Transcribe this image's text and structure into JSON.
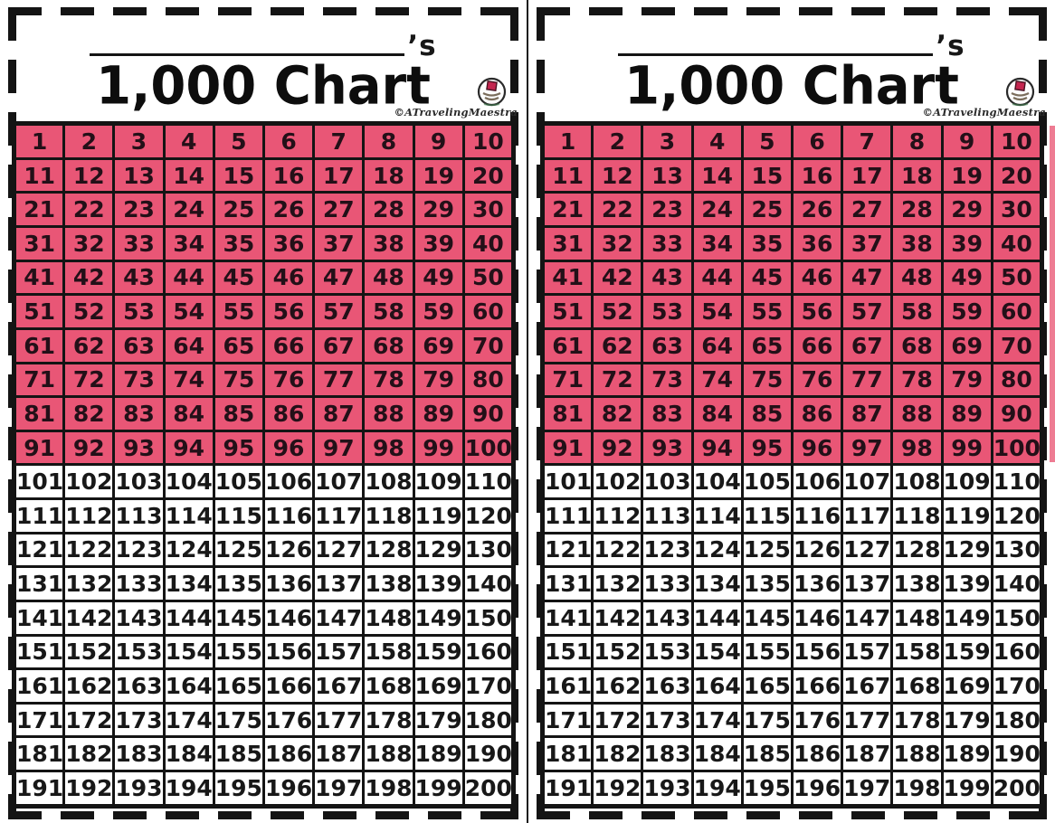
{
  "colors": {
    "highlight": "#e95676",
    "line": "#141414"
  },
  "panels": [
    {
      "name_line_suffix": "’s",
      "title": "1,000 Chart",
      "credit": "©ATravelingMaestra"
    },
    {
      "name_line_suffix": "’s",
      "title": "1,000 Chart",
      "credit": "©ATravelingMaestra"
    }
  ],
  "grid": {
    "rows": 20,
    "cols": 10,
    "first_value": 1,
    "last_value": 200,
    "highlighted_row_count": 10,
    "values": [
      [
        1,
        2,
        3,
        4,
        5,
        6,
        7,
        8,
        9,
        10
      ],
      [
        11,
        12,
        13,
        14,
        15,
        16,
        17,
        18,
        19,
        20
      ],
      [
        21,
        22,
        23,
        24,
        25,
        26,
        27,
        28,
        29,
        30
      ],
      [
        31,
        32,
        33,
        34,
        35,
        36,
        37,
        38,
        39,
        40
      ],
      [
        41,
        42,
        43,
        44,
        45,
        46,
        47,
        48,
        49,
        50
      ],
      [
        51,
        52,
        53,
        54,
        55,
        56,
        57,
        58,
        59,
        60
      ],
      [
        61,
        62,
        63,
        64,
        65,
        66,
        67,
        68,
        69,
        70
      ],
      [
        71,
        72,
        73,
        74,
        75,
        76,
        77,
        78,
        79,
        80
      ],
      [
        81,
        82,
        83,
        84,
        85,
        86,
        87,
        88,
        89,
        90
      ],
      [
        91,
        92,
        93,
        94,
        95,
        96,
        97,
        98,
        99,
        100
      ],
      [
        101,
        102,
        103,
        104,
        105,
        106,
        107,
        108,
        109,
        110
      ],
      [
        111,
        112,
        113,
        114,
        115,
        116,
        117,
        118,
        119,
        120
      ],
      [
        121,
        122,
        123,
        124,
        125,
        126,
        127,
        128,
        129,
        130
      ],
      [
        131,
        132,
        133,
        134,
        135,
        136,
        137,
        138,
        139,
        140
      ],
      [
        141,
        142,
        143,
        144,
        145,
        146,
        147,
        148,
        149,
        150
      ],
      [
        151,
        152,
        153,
        154,
        155,
        156,
        157,
        158,
        159,
        160
      ],
      [
        161,
        162,
        163,
        164,
        165,
        166,
        167,
        168,
        169,
        170
      ],
      [
        171,
        172,
        173,
        174,
        175,
        176,
        177,
        178,
        179,
        180
      ],
      [
        181,
        182,
        183,
        184,
        185,
        186,
        187,
        188,
        189,
        190
      ],
      [
        191,
        192,
        193,
        194,
        195,
        196,
        197,
        198,
        199,
        200
      ]
    ]
  }
}
